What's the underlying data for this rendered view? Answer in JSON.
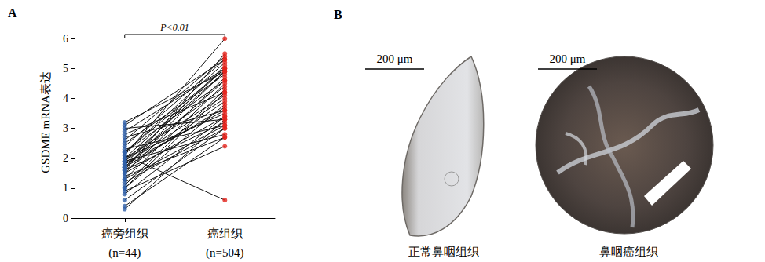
{
  "chart_data": {
    "type": "paired",
    "panel_label": "A",
    "y_label": "GSDME mRNA表达",
    "categories": [
      "癌旁组织",
      "癌组织"
    ],
    "n_labels": [
      "(n=44)",
      "(n=504)"
    ],
    "colors": [
      "#2f5fa7",
      "#e3231c"
    ],
    "annotations": [
      {
        "text": "P<0.01"
      }
    ],
    "ylim": [
      0,
      6.4
    ],
    "yticks": [
      0,
      1,
      2,
      3,
      4,
      5,
      6
    ],
    "grid": false,
    "values": [
      [
        3.2,
        4.9
      ],
      [
        3.1,
        5.3
      ],
      [
        3.0,
        3.3
      ],
      [
        2.9,
        5.0
      ],
      [
        2.8,
        4.2
      ],
      [
        2.7,
        3.6
      ],
      [
        2.6,
        5.4
      ],
      [
        2.5,
        4.8
      ],
      [
        2.3,
        3.1
      ],
      [
        2.2,
        5.2
      ],
      [
        2.2,
        4.6
      ],
      [
        2.1,
        0.6
      ],
      [
        2.0,
        5.0
      ],
      [
        2.0,
        3.5
      ],
      [
        1.9,
        4.4
      ],
      [
        1.9,
        2.8
      ],
      [
        1.8,
        5.1
      ],
      [
        1.8,
        4.0
      ],
      [
        1.7,
        3.7
      ],
      [
        1.7,
        4.9
      ],
      [
        1.6,
        3.2
      ],
      [
        1.6,
        5.5
      ],
      [
        1.5,
        4.7
      ],
      [
        1.5,
        3.4
      ],
      [
        1.4,
        2.7
      ],
      [
        1.3,
        4.5
      ],
      [
        1.2,
        3.0
      ],
      [
        1.1,
        4.3
      ],
      [
        1.0,
        3.8
      ],
      [
        0.9,
        2.4
      ],
      [
        0.8,
        3.4
      ],
      [
        0.6,
        3.0
      ],
      [
        0.4,
        2.7
      ],
      [
        0.3,
        3.3
      ],
      [
        2.1,
        6.0
      ],
      [
        1.9,
        4.9
      ],
      [
        2.0,
        4.1
      ],
      [
        1.8,
        3.6
      ],
      [
        2.2,
        5.0
      ],
      [
        1.7,
        4.6
      ],
      [
        1.6,
        3.9
      ],
      [
        2.4,
        5.3
      ],
      [
        1.3,
        3.1
      ],
      [
        1.0,
        4.2
      ]
    ]
  },
  "panel_b": {
    "label": "B",
    "images": [
      {
        "scale_bar": "200 μm",
        "caption": "正常鼻咽组织"
      },
      {
        "scale_bar": "200 μm",
        "caption": "鼻咽癌组织"
      }
    ]
  }
}
